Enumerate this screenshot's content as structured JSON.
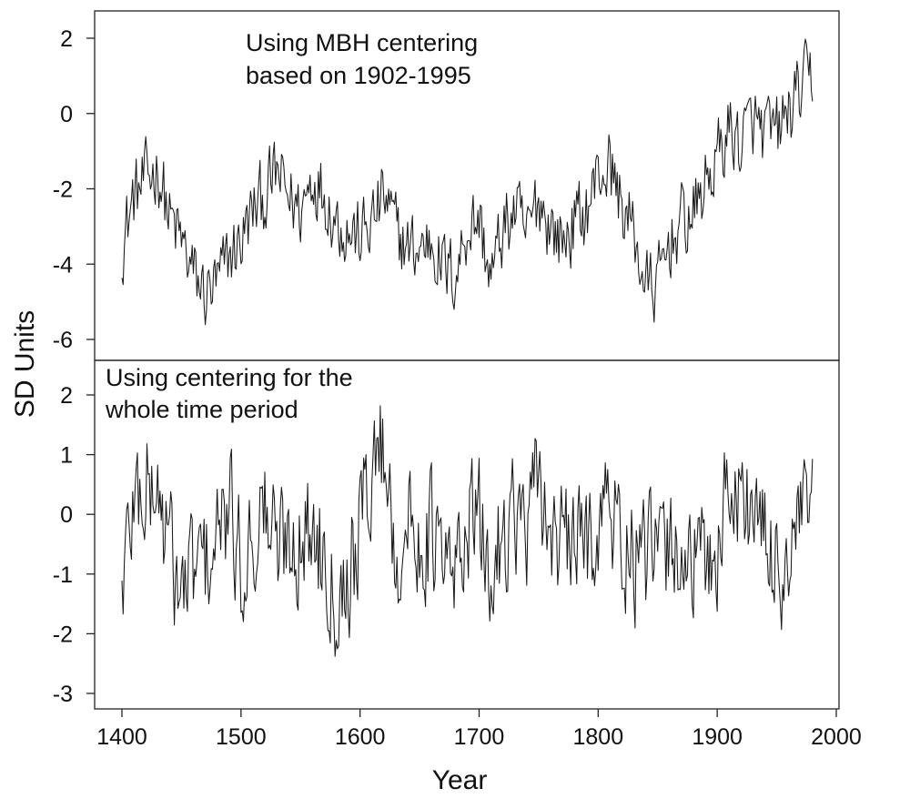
{
  "chart_data": [
    {
      "type": "line",
      "panel": "top",
      "annotation": [
        "Using MBH centering",
        "based on 1902-1995"
      ],
      "ylabel": "SD Units",
      "xlabel": "Year",
      "xlim": [
        1400,
        1980
      ],
      "ylim": [
        -6.2,
        2.4
      ],
      "yticks": [
        "2",
        "0",
        "-2",
        "-4",
        "-6"
      ],
      "ytick_values": [
        2,
        0,
        -2,
        -4,
        -6
      ],
      "grid": false,
      "x": [
        1400,
        1410,
        1420,
        1430,
        1440,
        1450,
        1460,
        1470,
        1480,
        1490,
        1500,
        1510,
        1520,
        1530,
        1540,
        1550,
        1560,
        1570,
        1580,
        1590,
        1600,
        1610,
        1620,
        1630,
        1640,
        1650,
        1660,
        1670,
        1680,
        1690,
        1700,
        1710,
        1720,
        1730,
        1740,
        1750,
        1760,
        1770,
        1780,
        1790,
        1800,
        1810,
        1820,
        1830,
        1840,
        1850,
        1860,
        1870,
        1880,
        1890,
        1900,
        1910,
        1920,
        1930,
        1940,
        1950,
        1960,
        1970,
        1980
      ],
      "values": [
        -3.5,
        -2.2,
        -1.8,
        -1.4,
        -2.8,
        -3.4,
        -4.3,
        -4.8,
        -4.6,
        -3.8,
        -3.4,
        -2.6,
        -2.2,
        -1.6,
        -2.2,
        -2.6,
        -1.6,
        -2.1,
        -2.8,
        -3.1,
        -3.3,
        -2.9,
        -2.2,
        -3.1,
        -3.6,
        -3.6,
        -3.3,
        -4.1,
        -4.3,
        -3.0,
        -2.8,
        -4.4,
        -3.1,
        -2.6,
        -3.3,
        -2.2,
        -3.0,
        -3.4,
        -2.9,
        -2.6,
        -1.6,
        -1.4,
        -2.4,
        -3.2,
        -4.6,
        -4.6,
        -3.4,
        -2.9,
        -2.7,
        -1.9,
        -1.2,
        -0.4,
        -0.8,
        -0.2,
        -0.6,
        -0.5,
        0.0,
        0.6,
        1.0
      ]
    },
    {
      "type": "line",
      "panel": "bottom",
      "annotation": [
        "Using centering for the",
        "whole time period"
      ],
      "ylabel": "SD Units",
      "xlabel": "Year",
      "xlim": [
        1400,
        1980
      ],
      "ylim": [
        -3.0,
        2.4
      ],
      "xticks": [
        "1400",
        "1500",
        "1600",
        "1700",
        "1800",
        "1900",
        "2000"
      ],
      "xtick_values": [
        1400,
        1500,
        1600,
        1700,
        1800,
        1900,
        2000
      ],
      "yticks": [
        "2",
        "1",
        "0",
        "-1",
        "-2",
        "-3"
      ],
      "ytick_values": [
        2,
        1,
        0,
        -1,
        -2,
        -3
      ],
      "grid": false,
      "x": [
        1400,
        1410,
        1420,
        1430,
        1440,
        1450,
        1460,
        1470,
        1480,
        1490,
        1500,
        1510,
        1520,
        1530,
        1540,
        1550,
        1560,
        1570,
        1580,
        1590,
        1600,
        1610,
        1620,
        1630,
        1640,
        1650,
        1660,
        1670,
        1680,
        1690,
        1700,
        1710,
        1720,
        1730,
        1740,
        1750,
        1760,
        1770,
        1780,
        1790,
        1800,
        1810,
        1820,
        1830,
        1840,
        1850,
        1860,
        1870,
        1880,
        1890,
        1900,
        1910,
        1920,
        1930,
        1940,
        1950,
        1960,
        1970,
        1980
      ],
      "values": [
        -1.2,
        0.3,
        0.4,
        0.4,
        -0.6,
        -1.4,
        -0.9,
        -0.8,
        -0.5,
        0.1,
        -0.9,
        -0.3,
        0.1,
        -0.6,
        -0.3,
        -0.4,
        -0.3,
        -0.5,
        -1.3,
        -1.0,
        -0.2,
        0.8,
        1.2,
        -0.7,
        -0.3,
        -0.4,
        -0.3,
        -0.9,
        -1.1,
        0.0,
        -0.2,
        -1.2,
        -0.2,
        0.1,
        -0.4,
        0.5,
        -0.2,
        -0.6,
        -0.5,
        -0.5,
        0.0,
        0.1,
        -0.5,
        -0.8,
        -0.8,
        -0.7,
        -0.6,
        -0.5,
        -0.9,
        -0.8,
        -0.6,
        0.6,
        0.2,
        0.2,
        -0.6,
        -0.8,
        -0.9,
        -0.2,
        0.3
      ]
    }
  ]
}
